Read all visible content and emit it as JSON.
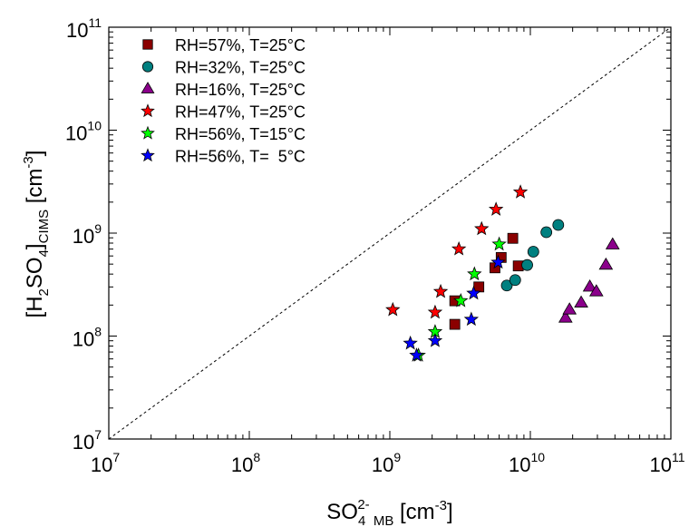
{
  "chart_data": {
    "type": "scatter",
    "xscale": "log",
    "yscale": "log",
    "xlim": [
      10000000.0,
      100000000000.0
    ],
    "ylim": [
      10000000.0,
      100000000000.0
    ],
    "xlabel": "SO4 2- MB [cm-3]",
    "ylabel": "[H2SO4]CIMS [cm-3]",
    "xlabel_parts": {
      "main": "SO",
      "sub": "4",
      "sup": "2-",
      "sub2": " MB",
      "unit_open": " [cm",
      "unit_sup": "-3",
      "unit_close": "]"
    },
    "ylabel_parts": {
      "open": "[H",
      "sub1": "2",
      "mid": "SO",
      "sub2": "4",
      "close": "]",
      "sub3": "CIMS",
      "unit_open": " [cm",
      "unit_sup": "-3",
      "unit_close": "]"
    },
    "x_ticks": [
      {
        "value": 10000000.0,
        "base": "10",
        "exp": "7"
      },
      {
        "value": 100000000.0,
        "base": "10",
        "exp": "8"
      },
      {
        "value": 1000000000.0,
        "base": "10",
        "exp": "9"
      },
      {
        "value": 10000000000.0,
        "base": "10",
        "exp": "10"
      },
      {
        "value": 100000000000.0,
        "base": "10",
        "exp": "11"
      }
    ],
    "y_ticks": [
      {
        "value": 10000000.0,
        "base": "10",
        "exp": "7"
      },
      {
        "value": 100000000.0,
        "base": "10",
        "exp": "8"
      },
      {
        "value": 1000000000.0,
        "base": "10",
        "exp": "9"
      },
      {
        "value": 10000000000.0,
        "base": "10",
        "exp": "10"
      },
      {
        "value": 100000000000.0,
        "base": "10",
        "exp": "11"
      }
    ],
    "reference_line": {
      "style": "dashed",
      "x": [
        10000000.0,
        100000000000.0
      ],
      "y": [
        10000000.0,
        100000000000.0
      ]
    },
    "legend_position": "top-left",
    "series": [
      {
        "name": "RH=57%, T=25°C",
        "marker": "square",
        "color": "#8b0000",
        "points": [
          [
            2900000000.0,
            220000000.0
          ],
          [
            2900000000.0,
            130000000.0
          ],
          [
            4300000000.0,
            300000000.0
          ],
          [
            5600000000.0,
            460000000.0
          ],
          [
            6200000000.0,
            580000000.0
          ],
          [
            7500000000.0,
            890000000.0
          ],
          [
            8200000000.0,
            480000000.0
          ]
        ]
      },
      {
        "name": "RH=32%, T=25°C",
        "marker": "circle",
        "color": "#008080",
        "points": [
          [
            6800000000.0,
            310000000.0
          ],
          [
            7800000000.0,
            350000000.0
          ],
          [
            9500000000.0,
            490000000.0
          ],
          [
            10500000000.0,
            660000000.0
          ],
          [
            13000000000.0,
            1020000000.0
          ],
          [
            15800000000.0,
            1200000000.0
          ]
        ]
      },
      {
        "name": "RH=16%, T=25°C",
        "marker": "triangle",
        "color": "#8b008b",
        "points": [
          [
            17800000000.0,
            150000000.0
          ],
          [
            19000000000.0,
            180000000.0
          ],
          [
            23000000000.0,
            210000000.0
          ],
          [
            26500000000.0,
            300000000.0
          ],
          [
            29500000000.0,
            270000000.0
          ],
          [
            34500000000.0,
            490000000.0
          ],
          [
            38500000000.0,
            770000000.0
          ]
        ]
      },
      {
        "name": "RH=47%, T=25°C",
        "marker": "star",
        "color": "#ff0000",
        "points": [
          [
            1050000000.0,
            180000000.0
          ],
          [
            2100000000.0,
            170000000.0
          ],
          [
            2300000000.0,
            270000000.0
          ],
          [
            3100000000.0,
            700000000.0
          ],
          [
            4500000000.0,
            1100000000.0
          ],
          [
            5700000000.0,
            1700000000.0
          ],
          [
            8500000000.0,
            2500000000.0
          ]
        ]
      },
      {
        "name": "RH=56%, T=15°C",
        "marker": "star",
        "color": "#00ff00",
        "points": [
          [
            1600000000.0,
            65000000.0
          ],
          [
            2100000000.0,
            110000000.0
          ],
          [
            3200000000.0,
            220000000.0
          ],
          [
            4000000000.0,
            400000000.0
          ],
          [
            6000000000.0,
            780000000.0
          ]
        ]
      },
      {
        "name": "RH=56%, T=  5°C",
        "marker": "star",
        "color": "#0000ff",
        "points": [
          [
            1400000000.0,
            85000000.0
          ],
          [
            1550000000.0,
            65000000.0
          ],
          [
            2100000000.0,
            90000000.0
          ],
          [
            3800000000.0,
            145000000.0
          ],
          [
            3950000000.0,
            260000000.0
          ],
          [
            5900000000.0,
            520000000.0
          ]
        ]
      }
    ]
  }
}
